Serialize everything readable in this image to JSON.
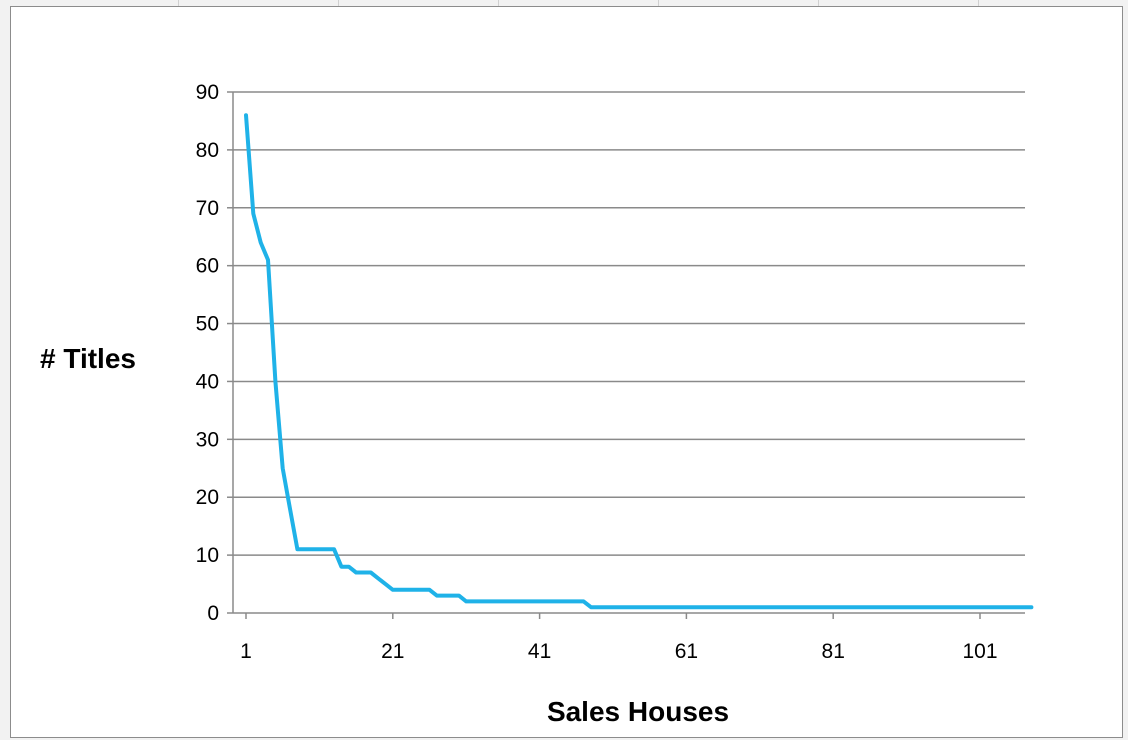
{
  "chart_data": {
    "type": "line",
    "xlabel": "Sales Houses",
    "ylabel": "# Titles",
    "ylim": [
      0,
      90
    ],
    "xlim": [
      1,
      108
    ],
    "x_ticks": [
      "1",
      "21",
      "41",
      "61",
      "81",
      "101"
    ],
    "y_ticks": [
      "0",
      "10",
      "20",
      "30",
      "40",
      "50",
      "60",
      "70",
      "80",
      "90"
    ],
    "grid": "horizontal",
    "legend": "none",
    "series": [
      {
        "color": "#1fb2e8",
        "points": [
          [
            1,
            86
          ],
          [
            2,
            69
          ],
          [
            3,
            64
          ],
          [
            4,
            61
          ],
          [
            5,
            40
          ],
          [
            6,
            25
          ],
          [
            7,
            18
          ],
          [
            8,
            11
          ],
          [
            9,
            11
          ],
          [
            10,
            11
          ],
          [
            11,
            11
          ],
          [
            12,
            11
          ],
          [
            13,
            11
          ],
          [
            14,
            8
          ],
          [
            15,
            8
          ],
          [
            16,
            7
          ],
          [
            17,
            7
          ],
          [
            18,
            7
          ],
          [
            19,
            6
          ],
          [
            20,
            5
          ],
          [
            21,
            4
          ],
          [
            22,
            4
          ],
          [
            23,
            4
          ],
          [
            24,
            4
          ],
          [
            25,
            4
          ],
          [
            26,
            4
          ],
          [
            27,
            3
          ],
          [
            28,
            3
          ],
          [
            29,
            3
          ],
          [
            30,
            3
          ],
          [
            31,
            2
          ],
          [
            32,
            2
          ],
          [
            33,
            2
          ],
          [
            34,
            2
          ],
          [
            35,
            2
          ],
          [
            36,
            2
          ],
          [
            37,
            2
          ],
          [
            38,
            2
          ],
          [
            39,
            2
          ],
          [
            40,
            2
          ],
          [
            41,
            2
          ],
          [
            42,
            2
          ],
          [
            43,
            2
          ],
          [
            44,
            2
          ],
          [
            45,
            2
          ],
          [
            46,
            2
          ],
          [
            47,
            2
          ],
          [
            48,
            1
          ],
          [
            49,
            1
          ],
          [
            108,
            1
          ]
        ]
      }
    ]
  }
}
